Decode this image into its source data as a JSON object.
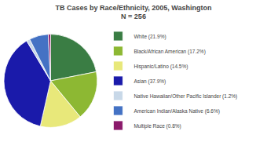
{
  "chart_data": {
    "type": "pie",
    "title": "TB Cases by Race/Ethnicity, 2005, Washington",
    "subtitle": "N = 256",
    "categories": [
      "White (21.9%)",
      "Black/African American (17.2%)",
      "Hispanic/Latino (14.5%)",
      "Asian (37.9%)",
      "Native Hawaiian/Other Pacific Islander (1.2%)",
      "American Indian/Alaska Native (6.6%)",
      "Multiple Race (0.8%)"
    ],
    "values": [
      21.9,
      17.2,
      14.5,
      37.9,
      1.2,
      6.6,
      0.8
    ],
    "colors": [
      "#3a7d44",
      "#8db833",
      "#e8e87a",
      "#1a1aaa",
      "#c8d8e8",
      "#4472c4",
      "#8b1a6b"
    ],
    "legend": "right"
  }
}
